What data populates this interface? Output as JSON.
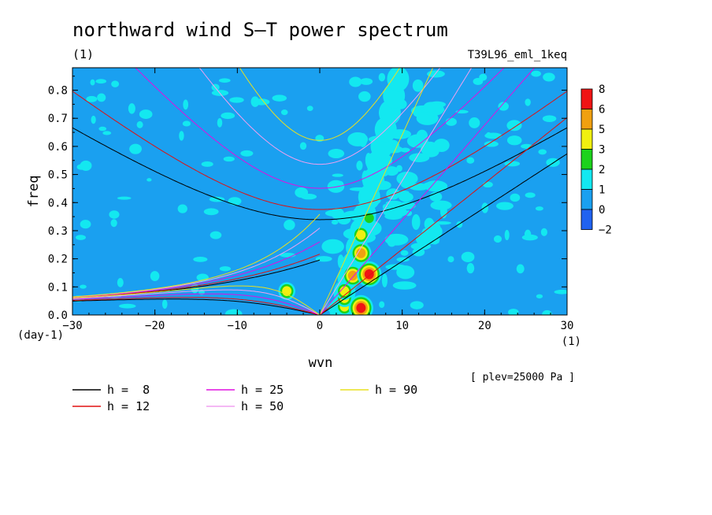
{
  "chart_data": {
    "type": "heatmap",
    "title": "northward wind S—T power spectrum",
    "units_label": "(1)",
    "experiment": "T39L96_eml_1keq",
    "xlabel": "wvn",
    "ylabel": "freq",
    "x_unit": "(1)",
    "y_unit": "(day-1)",
    "xlim": [
      -30,
      30
    ],
    "ylim": [
      0,
      0.88
    ],
    "xticks": [
      -30,
      -20,
      -10,
      0,
      10,
      20,
      30
    ],
    "yticks": [
      0.0,
      0.1,
      0.2,
      0.3,
      0.4,
      0.5,
      0.6,
      0.7,
      0.8
    ],
    "level_note": "[ plev=25000 Pa ]",
    "colorbar": {
      "levels": [
        -2,
        0,
        1,
        2,
        3,
        5,
        6,
        8
      ],
      "colors": [
        "#2062f0",
        "#1aa0f0",
        "#13e8f0",
        "#1cd21c",
        "#f0f010",
        "#f0a010",
        "#f01414"
      ]
    },
    "background_level_color": "#1aa0f0",
    "peaks": [
      {
        "wvn": -4,
        "freq": 0.085,
        "level": 3
      },
      {
        "wvn": 3,
        "freq": 0.03,
        "level": 3
      },
      {
        "wvn": 3,
        "freq": 0.06,
        "level": 3
      },
      {
        "wvn": 3,
        "freq": 0.085,
        "level": 3
      },
      {
        "wvn": 4,
        "freq": 0.14,
        "level": 5
      },
      {
        "wvn": 5,
        "freq": 0.025,
        "level": 6
      },
      {
        "wvn": 5,
        "freq": 0.22,
        "level": 5
      },
      {
        "wvn": 5,
        "freq": 0.285,
        "level": 3
      },
      {
        "wvn": 6,
        "freq": 0.145,
        "level": 6
      },
      {
        "wvn": 6,
        "freq": 0.345,
        "level": 2
      }
    ],
    "dispersion_curves": [
      {
        "label": "h =  8",
        "h": 8,
        "color": "#000000"
      },
      {
        "label": "h = 12",
        "h": 12,
        "color": "#e01010"
      },
      {
        "label": "h = 25",
        "h": 25,
        "color": "#e010e0"
      },
      {
        "label": "h = 50",
        "h": 50,
        "color": "#f0a0f0"
      },
      {
        "label": "h = 90",
        "h": 90,
        "color": "#e8e020"
      }
    ]
  }
}
